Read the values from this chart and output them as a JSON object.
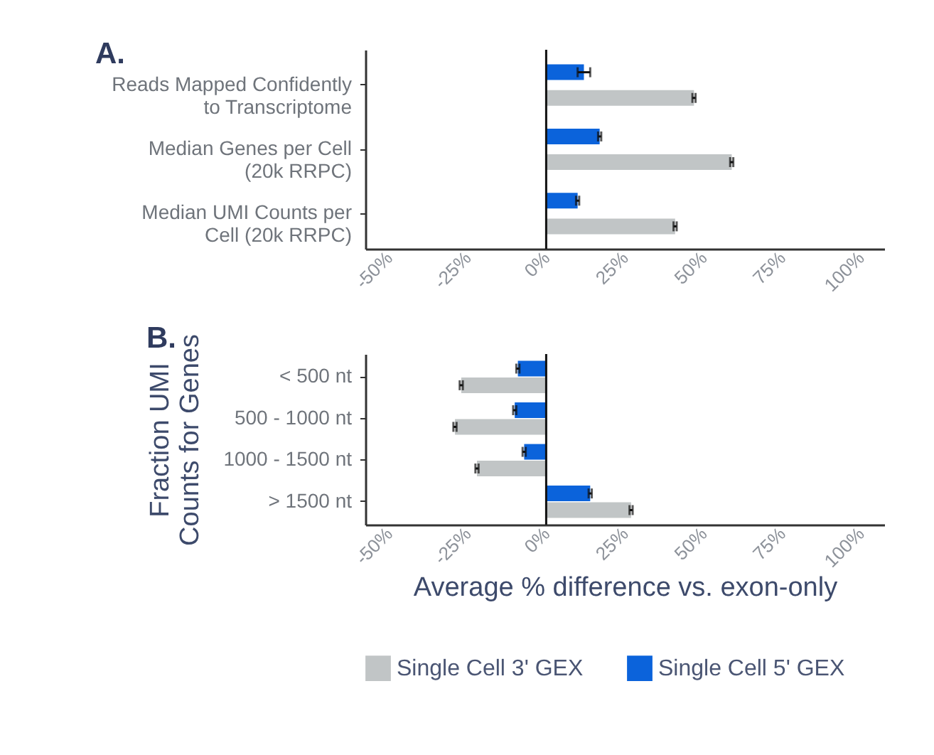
{
  "chart_data": [
    {
      "type": "bar",
      "orientation": "horizontal",
      "title": "A.",
      "categories": [
        "Reads Mapped Confidently\nto Transcriptome",
        "Median Genes per Cell\n(20k RRPC)",
        "Median UMI Counts per\nCell (20k RRPC)"
      ],
      "series": [
        {
          "color": "#c1c5c6",
          "values": [
            47,
            59,
            41
          ],
          "errors": [
            0.5,
            0.5,
            0.5
          ]
        },
        {
          "color": "#0b63db",
          "values": [
            12,
            17,
            10
          ],
          "errors": [
            2,
            0.5,
            0.5
          ]
        }
      ],
      "xlim": [
        -57.5,
        107.5
      ],
      "xticks": [
        {
          "value": -50,
          "label": "-50%"
        },
        {
          "value": -25,
          "label": "-25%"
        },
        {
          "value": 0,
          "label": "0%"
        },
        {
          "value": 25,
          "label": "25%"
        },
        {
          "value": 50,
          "label": "50%"
        },
        {
          "value": 75,
          "label": "75%"
        },
        {
          "value": 100,
          "label": "100%"
        }
      ],
      "ref_lines": [
        {
          "axis": "x",
          "value": 0
        }
      ]
    },
    {
      "type": "bar",
      "orientation": "horizontal",
      "title": "B.",
      "xlabel": "Average % difference vs. exon-only",
      "ylabel": "Fraction UMI\nCounts for Genes",
      "categories": [
        "< 500 nt",
        "500 - 1000 nt",
        "1000 - 1500 nt",
        "> 1500 nt"
      ],
      "series": [
        {
          "name": "Single Cell 3' GEX",
          "color": "#c1c5c6",
          "values": [
            -27,
            -29,
            -22,
            27
          ],
          "errors": [
            0.5,
            0.5,
            0.5,
            0.5
          ]
        },
        {
          "name": "Single Cell 5' GEX",
          "color": "#0b63db",
          "values": [
            -9,
            -10,
            -7,
            14
          ],
          "errors": [
            0.5,
            0.5,
            0.5,
            0.5
          ]
        }
      ],
      "xlim": [
        -57.5,
        107.5
      ],
      "xticks": [
        {
          "value": -50,
          "label": "-50%"
        },
        {
          "value": -25,
          "label": "-25%"
        },
        {
          "value": 0,
          "label": "0%"
        },
        {
          "value": 25,
          "label": "25%"
        },
        {
          "value": 50,
          "label": "50%"
        },
        {
          "value": 75,
          "label": "75%"
        },
        {
          "value": 100,
          "label": "100%"
        }
      ],
      "ref_lines": [
        {
          "axis": "x",
          "value": 0
        }
      ],
      "legend": "bottom"
    }
  ]
}
